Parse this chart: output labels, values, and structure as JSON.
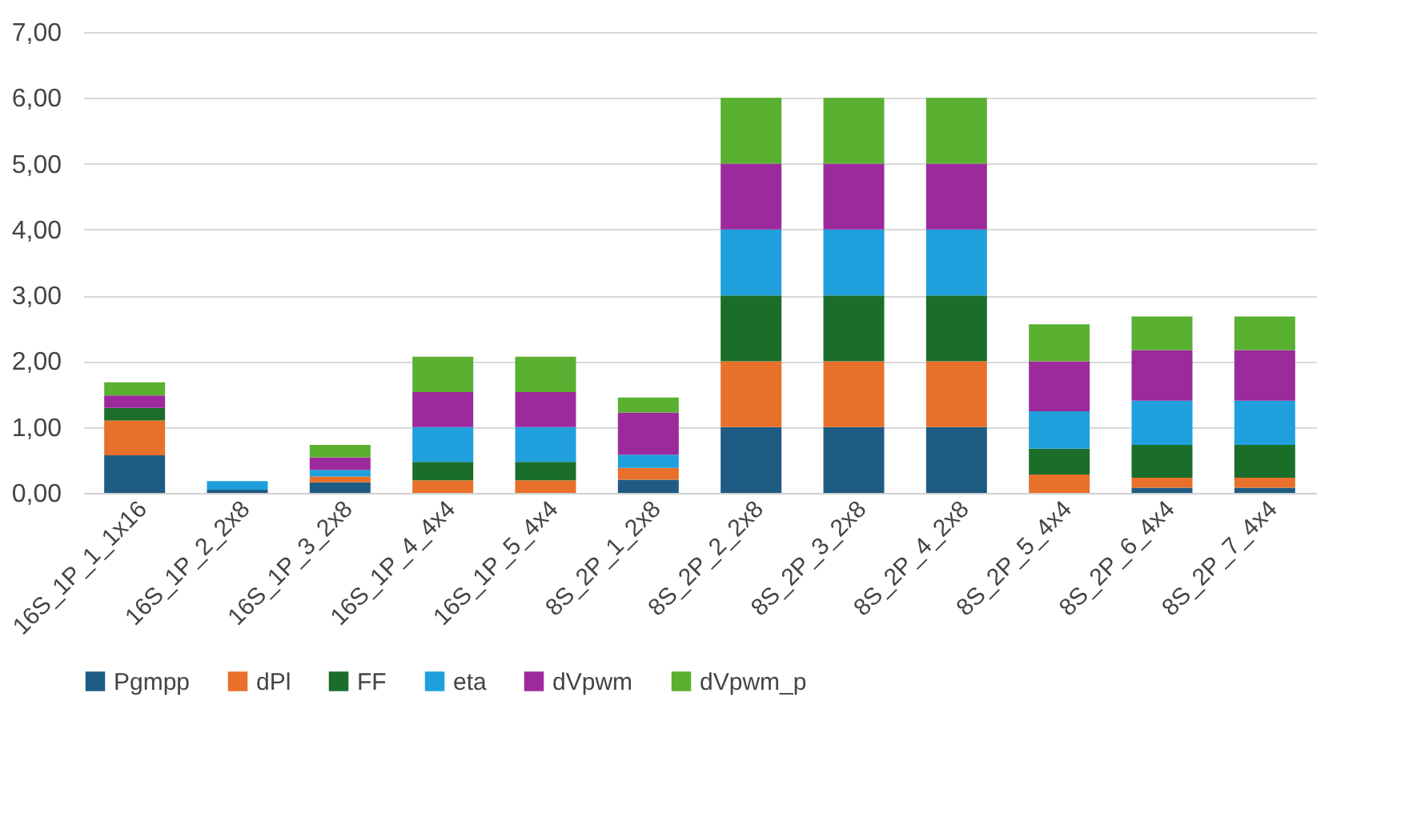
{
  "chart_data": {
    "type": "bar",
    "stacked": true,
    "categories": [
      "16S_1P_1_1x16",
      "16S_1P_2_2x8",
      "16S_1P_3_2x8",
      "16S_1P_4_4x4",
      "16S_1P_5_4x4",
      "8S_2P_1_2x8",
      "8S_2P_2_2x8",
      "8S_2P_3_2x8",
      "8S_2P_4_2x8",
      "8S_2P_5_4x4",
      "8S_2P_6_4x4",
      "8S_2P_7_4x4"
    ],
    "series": [
      {
        "name": "Pgmpp",
        "color": "#1f5c84",
        "values": [
          0.57,
          0.05,
          0.16,
          0,
          0,
          0.2,
          1,
          1,
          1,
          0,
          0.08,
          0.08
        ]
      },
      {
        "name": "dPl",
        "color": "#e8702a",
        "values": [
          0.53,
          0,
          0.09,
          0.19,
          0.19,
          0.18,
          1,
          1,
          1,
          0.28,
          0.15,
          0.15
        ]
      },
      {
        "name": "FF",
        "color": "#1a6e2a",
        "values": [
          0.19,
          0,
          0,
          0.28,
          0.28,
          0,
          1,
          1,
          1,
          0.39,
          0.5,
          0.5
        ]
      },
      {
        "name": "eta",
        "color": "#1fa0dc",
        "values": [
          0,
          0.13,
          0.1,
          0.53,
          0.53,
          0.2,
          1,
          1,
          1,
          0.57,
          0.67,
          0.67
        ]
      },
      {
        "name": "dVpwm",
        "color": "#9c2a9c",
        "values": [
          0.19,
          0,
          0.19,
          0.53,
          0.53,
          0.64,
          1,
          1,
          1,
          0.76,
          0.77,
          0.77
        ]
      },
      {
        "name": "dVpwm_p",
        "color": "#5ab030",
        "values": [
          0.2,
          0,
          0.19,
          0.54,
          0.54,
          0.23,
          1,
          1,
          1,
          0.56,
          0.51,
          0.51
        ]
      }
    ],
    "ylim": [
      0,
      7
    ],
    "yticks": [
      {
        "value": 0,
        "label": "0,00"
      },
      {
        "value": 1,
        "label": "1,00"
      },
      {
        "value": 2,
        "label": "2,00"
      },
      {
        "value": 3,
        "label": "3,00"
      },
      {
        "value": 4,
        "label": "4,00"
      },
      {
        "value": 5,
        "label": "5,00"
      },
      {
        "value": 6,
        "label": "6,00"
      },
      {
        "value": 7,
        "label": "7,00"
      }
    ],
    "grid": "y",
    "legend": "bottom"
  }
}
